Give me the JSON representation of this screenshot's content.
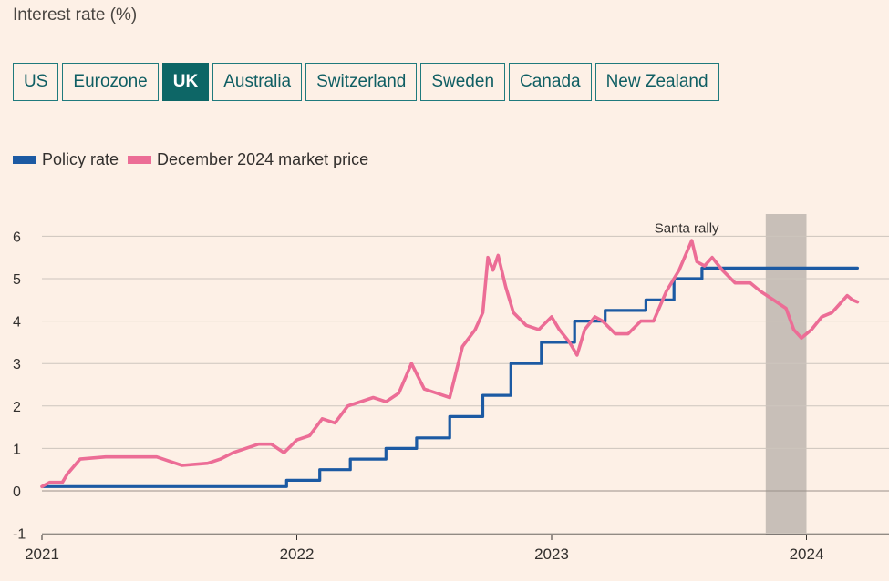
{
  "header": {
    "title": "Interest rate (%)"
  },
  "tabs": [
    {
      "label": "US",
      "active": false
    },
    {
      "label": "Eurozone",
      "active": false
    },
    {
      "label": "UK",
      "active": true
    },
    {
      "label": "Australia",
      "active": false
    },
    {
      "label": "Switzerland",
      "active": false
    },
    {
      "label": "Sweden",
      "active": false
    },
    {
      "label": "Canada",
      "active": false
    },
    {
      "label": "New Zealand",
      "active": false
    }
  ],
  "colors": {
    "policy": "#1c5aa3",
    "market": "#ec6d96",
    "grid": "#cdc5bd",
    "axis": "#33302e",
    "shade": "#c8bfb8",
    "active_tab": "#0d6666",
    "background": "#fdf0e6"
  },
  "chart_data": {
    "type": "line",
    "title": "Interest rate (%)",
    "ylim": [
      -1,
      6.5
    ],
    "yticks": [
      -1,
      0,
      1,
      2,
      3,
      4,
      5,
      6
    ],
    "xticks": [
      "2021",
      "2022",
      "2023",
      "2024"
    ],
    "xlim": [
      2021.0,
      2024.25
    ],
    "grid": true,
    "legend_position": "top-left",
    "annotations": [
      {
        "text": "Santa rally",
        "x": 2023.53,
        "y": 6.0
      }
    ],
    "shaded_region": {
      "x_start": 2023.84,
      "x_end": 2024.0
    },
    "series": [
      {
        "name": "Policy rate",
        "step": true,
        "points": [
          [
            2021.0,
            0.1
          ],
          [
            2021.96,
            0.1
          ],
          [
            2021.96,
            0.25
          ],
          [
            2022.09,
            0.25
          ],
          [
            2022.09,
            0.5
          ],
          [
            2022.21,
            0.5
          ],
          [
            2022.21,
            0.75
          ],
          [
            2022.35,
            0.75
          ],
          [
            2022.35,
            1.0
          ],
          [
            2022.47,
            1.0
          ],
          [
            2022.47,
            1.25
          ],
          [
            2022.6,
            1.25
          ],
          [
            2022.6,
            1.75
          ],
          [
            2022.73,
            1.75
          ],
          [
            2022.73,
            2.25
          ],
          [
            2022.84,
            2.25
          ],
          [
            2022.84,
            3.0
          ],
          [
            2022.96,
            3.0
          ],
          [
            2022.96,
            3.5
          ],
          [
            2023.09,
            3.5
          ],
          [
            2023.09,
            4.0
          ],
          [
            2023.21,
            4.0
          ],
          [
            2023.21,
            4.25
          ],
          [
            2023.37,
            4.25
          ],
          [
            2023.37,
            4.5
          ],
          [
            2023.48,
            4.5
          ],
          [
            2023.48,
            5.0
          ],
          [
            2023.59,
            5.0
          ],
          [
            2023.59,
            5.25
          ],
          [
            2024.2,
            5.25
          ]
        ]
      },
      {
        "name": "December 2024 market price",
        "step": false,
        "points": [
          [
            2021.0,
            0.1
          ],
          [
            2021.03,
            0.2
          ],
          [
            2021.08,
            0.2
          ],
          [
            2021.1,
            0.4
          ],
          [
            2021.15,
            0.75
          ],
          [
            2021.25,
            0.8
          ],
          [
            2021.35,
            0.8
          ],
          [
            2021.45,
            0.8
          ],
          [
            2021.5,
            0.7
          ],
          [
            2021.55,
            0.6
          ],
          [
            2021.65,
            0.65
          ],
          [
            2021.7,
            0.75
          ],
          [
            2021.75,
            0.9
          ],
          [
            2021.85,
            1.1
          ],
          [
            2021.9,
            1.1
          ],
          [
            2021.95,
            0.9
          ],
          [
            2022.0,
            1.2
          ],
          [
            2022.05,
            1.3
          ],
          [
            2022.1,
            1.7
          ],
          [
            2022.15,
            1.6
          ],
          [
            2022.2,
            2.0
          ],
          [
            2022.3,
            2.2
          ],
          [
            2022.35,
            2.1
          ],
          [
            2022.4,
            2.3
          ],
          [
            2022.45,
            3.0
          ],
          [
            2022.5,
            2.4
          ],
          [
            2022.55,
            2.3
          ],
          [
            2022.6,
            2.2
          ],
          [
            2022.65,
            3.4
          ],
          [
            2022.7,
            3.8
          ],
          [
            2022.73,
            4.2
          ],
          [
            2022.75,
            5.5
          ],
          [
            2022.77,
            5.2
          ],
          [
            2022.79,
            5.55
          ],
          [
            2022.82,
            4.8
          ],
          [
            2022.85,
            4.2
          ],
          [
            2022.9,
            3.9
          ],
          [
            2022.95,
            3.8
          ],
          [
            2023.0,
            4.1
          ],
          [
            2023.03,
            3.8
          ],
          [
            2023.07,
            3.5
          ],
          [
            2023.1,
            3.2
          ],
          [
            2023.13,
            3.8
          ],
          [
            2023.17,
            4.1
          ],
          [
            2023.2,
            4.0
          ],
          [
            2023.25,
            3.7
          ],
          [
            2023.3,
            3.7
          ],
          [
            2023.35,
            4.0
          ],
          [
            2023.4,
            4.0
          ],
          [
            2023.45,
            4.7
          ],
          [
            2023.5,
            5.2
          ],
          [
            2023.55,
            5.9
          ],
          [
            2023.57,
            5.4
          ],
          [
            2023.6,
            5.3
          ],
          [
            2023.63,
            5.5
          ],
          [
            2023.67,
            5.2
          ],
          [
            2023.72,
            4.9
          ],
          [
            2023.78,
            4.9
          ],
          [
            2023.82,
            4.7
          ],
          [
            2023.87,
            4.5
          ],
          [
            2023.92,
            4.3
          ],
          [
            2023.95,
            3.8
          ],
          [
            2023.98,
            3.6
          ],
          [
            2024.02,
            3.8
          ],
          [
            2024.06,
            4.1
          ],
          [
            2024.1,
            4.2
          ],
          [
            2024.13,
            4.4
          ],
          [
            2024.16,
            4.6
          ],
          [
            2024.18,
            4.5
          ],
          [
            2024.2,
            4.45
          ]
        ]
      }
    ]
  }
}
